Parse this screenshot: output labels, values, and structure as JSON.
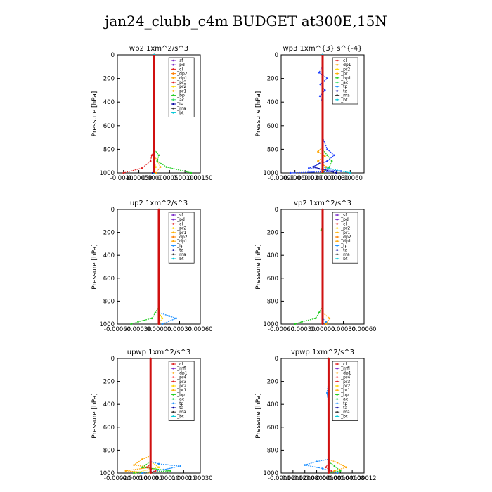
{
  "page": {
    "title": "jan24_clubb_c4m  BUDGET at300E,15N"
  },
  "chart_data": [
    {
      "type": "line",
      "title": "wp2   1xm^2/s^3",
      "ylabel": "Pressure [hPa]",
      "xlim": [
        -0.0012,
        0.0015
      ],
      "xticks": [
        -0.001,
        -0.0005,
        0.0,
        0.0005,
        0.001,
        0.0015
      ],
      "xtick_labels": [
        "-0.00100",
        "-0.00050",
        "0.00000",
        "0.00050",
        "0.00100",
        "0.00150"
      ],
      "ylim": [
        1000,
        0
      ],
      "yticks": [
        0,
        200,
        400,
        600,
        800,
        1000
      ],
      "legend": [
        "_sf",
        "_pd",
        "_cl",
        "_dp2",
        "_dp1",
        "_pr3",
        "_pr2",
        "_pr1",
        "_bp",
        "_ac",
        "_ta",
        "_ma",
        "_bt"
      ],
      "series": [
        {
          "name": "_sf",
          "color": "#7a28c8",
          "points": [
            [
              0,
              0
            ],
            [
              0,
              800
            ],
            [
              0,
              1000
            ]
          ]
        },
        {
          "name": "_cl",
          "color": "#e02020",
          "points": [
            [
              0,
              0
            ],
            [
              0,
              820
            ],
            [
              -8e-05,
              850
            ],
            [
              -0.00012,
              900
            ],
            [
              -0.0004,
              960
            ],
            [
              -0.001,
              1000
            ]
          ]
        },
        {
          "name": "_dp1",
          "color": "#ffa500",
          "points": [
            [
              0,
              0
            ],
            [
              0,
              850
            ],
            [
              0.0001,
              900
            ],
            [
              0.0002,
              950
            ],
            [
              5e-05,
              1000
            ]
          ]
        },
        {
          "name": "_pr2",
          "color": "#ffd700",
          "points": [
            [
              0,
              0
            ],
            [
              0,
              900
            ],
            [
              5e-05,
              950
            ],
            [
              0,
              1000
            ]
          ]
        },
        {
          "name": "_pr1",
          "color": "#22cc22",
          "points": [
            [
              0,
              0
            ],
            [
              0,
              800
            ],
            [
              0.00015,
              850
            ],
            [
              0.0001,
              900
            ],
            [
              0.0004,
              950
            ],
            [
              0.0012,
              1000
            ]
          ]
        },
        {
          "name": "_bp",
          "color": "#1e90ff",
          "points": [
            [
              0,
              0
            ],
            [
              0,
              1000
            ]
          ]
        },
        {
          "name": "_ta",
          "color": "#0000a0",
          "points": [
            [
              0,
              0
            ],
            [
              0,
              950
            ],
            [
              -5e-05,
              1000
            ]
          ]
        },
        {
          "name": "_bt",
          "color": "#00c8d8",
          "points": [
            [
              0,
              0
            ],
            [
              0,
              1000
            ]
          ]
        }
      ]
    },
    {
      "type": "line",
      "title": "wp3   1xm^{3} s^{-4}",
      "ylabel": "Pressure [hPa]",
      "xlim": [
        -0.0009,
        0.0009
      ],
      "xticks": [
        -0.0009,
        -0.0006,
        -0.0003,
        0.0,
        0.0003,
        0.0006
      ],
      "xtick_labels": [
        "-0.00090",
        "-0.00060",
        "-0.00030",
        "0.00000",
        "0.00030",
        "0.00060"
      ],
      "ylim": [
        1000,
        0
      ],
      "yticks": [
        0,
        200,
        400,
        600,
        800,
        1000
      ],
      "legend": [
        "_cl",
        "_dp1",
        "_pr2",
        "_pr1",
        "_bp1",
        "_ac",
        "_tp",
        "_ta",
        "_ma",
        "_bt"
      ],
      "series": [
        {
          "name": "_cl",
          "color": "#e02020",
          "points": [
            [
              0,
              0
            ],
            [
              0,
              1000
            ]
          ]
        },
        {
          "name": "_pr1",
          "color": "#ffa500",
          "points": [
            [
              0,
              0
            ],
            [
              0,
              780
            ],
            [
              -0.0001,
              820
            ],
            [
              5e-05,
              860
            ],
            [
              -0.0001,
              900
            ],
            [
              8e-05,
              950
            ],
            [
              0,
              1000
            ]
          ]
        },
        {
          "name": "_bp1",
          "color": "#22cc22",
          "points": [
            [
              0,
              0
            ],
            [
              0,
              800
            ],
            [
              0.0001,
              850
            ],
            [
              0.0002,
              900
            ],
            [
              0.00015,
              950
            ],
            [
              0,
              1000
            ]
          ]
        },
        {
          "name": "_tp",
          "color": "#1e40ff",
          "points": [
            [
              0,
              0
            ],
            [
              0,
              100
            ],
            [
              -8e-05,
              150
            ],
            [
              0.0001,
              200
            ],
            [
              -5e-05,
              250
            ],
            [
              5e-05,
              300
            ],
            [
              -6e-05,
              350
            ],
            [
              0,
              400
            ],
            [
              0,
              700
            ],
            [
              0.0001,
              800
            ],
            [
              0.00025,
              850
            ],
            [
              0.0001,
              900
            ],
            [
              -0.0003,
              960
            ],
            [
              0.0004,
              985
            ],
            [
              -0.0007,
              1000
            ]
          ]
        },
        {
          "name": "_ta",
          "color": "#0000a0",
          "points": [
            [
              0,
              0
            ],
            [
              0,
              900
            ],
            [
              -0.0002,
              950
            ],
            [
              0.0003,
              1000
            ]
          ]
        },
        {
          "name": "_bt",
          "color": "#00c8d8",
          "points": [
            [
              0,
              0
            ],
            [
              0,
              950
            ],
            [
              0.0006,
              1000
            ]
          ]
        }
      ]
    },
    {
      "type": "line",
      "title": "up2   1xm^2/s^3",
      "ylabel": "Pressure [hPa]",
      "xlim": [
        -0.0006,
        0.0006
      ],
      "xticks": [
        -0.0006,
        -0.0003,
        0.0,
        0.0003,
        0.0006
      ],
      "xtick_labels": [
        "-0.00060",
        "-0.00030",
        "0.00000",
        "0.00030",
        "0.00060"
      ],
      "ylim": [
        1000,
        0
      ],
      "yticks": [
        0,
        200,
        400,
        600,
        800,
        1000
      ],
      "legend": [
        "_sf",
        "_pd",
        "_cl",
        "_pr2",
        "_pr1",
        "_dp2",
        "_dp1",
        "_tp",
        "_ta",
        "_ma",
        "_bt"
      ],
      "series": [
        {
          "name": "_pr1",
          "color": "#22cc22",
          "points": [
            [
              0,
              0
            ],
            [
              0,
              850
            ],
            [
              -5e-05,
              900
            ],
            [
              -0.0001,
              950
            ],
            [
              -0.0003,
              980
            ],
            [
              -0.0004,
              1000
            ]
          ]
        },
        {
          "name": "_pr2",
          "color": "#ffd700",
          "points": [
            [
              0,
              0
            ],
            [
              0,
              900
            ],
            [
              5e-05,
              950
            ],
            [
              0,
              1000
            ]
          ]
        },
        {
          "name": "_tp",
          "color": "#1e90ff",
          "points": [
            [
              0,
              0
            ],
            [
              0,
              900
            ],
            [
              0.00015,
              930
            ],
            [
              0.00025,
              950
            ],
            [
              5e-05,
              1000
            ]
          ]
        },
        {
          "name": "_cl",
          "color": "#e02020",
          "points": [
            [
              0,
              0
            ],
            [
              0,
              1000
            ]
          ]
        }
      ]
    },
    {
      "type": "line",
      "title": "vp2   1xm^2/s^3",
      "ylabel": "Pressure [hPa]",
      "xlim": [
        -0.0006,
        0.0006
      ],
      "xticks": [
        -0.0006,
        -0.0003,
        0.0,
        0.0003,
        0.0006
      ],
      "xtick_labels": [
        "-0.00060",
        "-0.00030",
        "0.00000",
        "0.00030",
        "0.00060"
      ],
      "ylim": [
        1000,
        0
      ],
      "yticks": [
        0,
        200,
        400,
        600,
        800,
        1000
      ],
      "legend": [
        "_sf",
        "_pd",
        "_cl",
        "_pr2",
        "_pr1",
        "_dp2",
        "_dp1",
        "_tp",
        "_ta",
        "_ma",
        "_bt"
      ],
      "series": [
        {
          "name": "_pr1",
          "color": "#22cc22",
          "points": [
            [
              0,
              0
            ],
            [
              0,
              150
            ],
            [
              -2e-05,
              180
            ],
            [
              0,
              200
            ],
            [
              0,
              850
            ],
            [
              -5e-05,
              900
            ],
            [
              -0.0001,
              950
            ],
            [
              -0.0003,
              980
            ],
            [
              -0.0004,
              1000
            ]
          ]
        },
        {
          "name": "_dp1",
          "color": "#ffa500",
          "points": [
            [
              0,
              0
            ],
            [
              0,
              900
            ],
            [
              0.0001,
              950
            ],
            [
              5e-05,
              1000
            ]
          ]
        },
        {
          "name": "_tp",
          "color": "#1e90ff",
          "points": [
            [
              0,
              0
            ],
            [
              0,
              950
            ],
            [
              5e-05,
              980
            ],
            [
              0,
              1000
            ]
          ]
        },
        {
          "name": "_cl",
          "color": "#e02020",
          "points": [
            [
              0,
              0
            ],
            [
              0,
              1000
            ]
          ]
        }
      ]
    },
    {
      "type": "line",
      "title": "upwp   1xm^2/s^3",
      "ylabel": "Pressure [hPa]",
      "xlim": [
        -0.0002,
        0.0003
      ],
      "xticks": [
        -0.0002,
        -0.0001,
        0.0,
        0.0001,
        0.0002,
        0.0003
      ],
      "xtick_labels": [
        "-0.00020",
        "-0.00010",
        "0.00000",
        "0.00010",
        "0.00020",
        "0.00030"
      ],
      "ylim": [
        1000,
        0
      ],
      "yticks": [
        0,
        200,
        400,
        600,
        800,
        1000
      ],
      "legend": [
        "_cl",
        "_mfl",
        "_dp1",
        "_pr4",
        "_pr3",
        "_pr2",
        "_pr1",
        "_bp",
        "_ac",
        "_tp",
        "_ta",
        "_ma",
        "_bt"
      ],
      "series": [
        {
          "name": "_cl",
          "color": "#7a28c8",
          "points": [
            [
              0,
              0
            ],
            [
              0,
              1000
            ]
          ]
        },
        {
          "name": "_pr1",
          "color": "#ffa500",
          "points": [
            [
              0,
              0
            ],
            [
              0,
              850
            ],
            [
              -5e-05,
              880
            ],
            [
              -0.0001,
              930
            ],
            [
              0,
              950
            ],
            [
              -0.00015,
              980
            ],
            [
              0,
              1000
            ]
          ]
        },
        {
          "name": "_pr2",
          "color": "#ffd700",
          "points": [
            [
              0,
              0
            ],
            [
              0,
              900
            ],
            [
              5e-05,
              950
            ],
            [
              -0.0001,
              1000
            ]
          ]
        },
        {
          "name": "_bp",
          "color": "#22cc22",
          "points": [
            [
              0,
              0
            ],
            [
              0,
              900
            ],
            [
              -5e-05,
              950
            ],
            [
              0.00012,
              980
            ],
            [
              -0.0001,
              1000
            ]
          ]
        },
        {
          "name": "_tp",
          "color": "#1e90ff",
          "points": [
            [
              0,
              0
            ],
            [
              0,
              900
            ],
            [
              5e-05,
              920
            ],
            [
              0.00018,
              940
            ],
            [
              8e-05,
              970
            ],
            [
              -5e-05,
              1000
            ]
          ]
        },
        {
          "name": "_pr3",
          "color": "#e02020",
          "points": [
            [
              0,
              0
            ],
            [
              0,
              920
            ],
            [
              -2e-05,
              950
            ],
            [
              3e-05,
              980
            ],
            [
              0,
              1000
            ]
          ]
        }
      ]
    },
    {
      "type": "line",
      "title": "vpwp   1xm^2/s^3",
      "ylabel": "Pressure [hPa]",
      "xlim": [
        -0.00016,
        0.00012
      ],
      "xticks": [
        -0.00016,
        -0.00012,
        -8e-05,
        -4e-05,
        0.0,
        4e-05,
        8e-05,
        0.00012
      ],
      "xtick_labels": [
        "-0.00016",
        "-0.00012",
        "-0.00008",
        "-0.00004",
        "0.00000",
        "0.00004",
        "0.00008",
        "0.00012"
      ],
      "ylim": [
        1000,
        0
      ],
      "yticks": [
        0,
        200,
        400,
        600,
        800,
        1000
      ],
      "legend": [
        "_cl",
        "_mfl",
        "_dp1",
        "_pr4",
        "_pr3",
        "_pr2",
        "_pr1",
        "_bp",
        "_ac",
        "_tp",
        "_ta",
        "_ma",
        "_bt"
      ],
      "series": [
        {
          "name": "_cl",
          "color": "#7a28c8",
          "points": [
            [
              0,
              0
            ],
            [
              0,
              1000
            ]
          ]
        },
        {
          "name": "_tp",
          "color": "#1e90ff",
          "points": [
            [
              0,
              0
            ],
            [
              0,
              200
            ],
            [
              -5e-06,
              300
            ],
            [
              0,
              400
            ],
            [
              0,
              880
            ],
            [
              -4e-05,
              900
            ],
            [
              -8e-05,
              930
            ],
            [
              -2e-05,
              960
            ],
            [
              3e-05,
              1000
            ]
          ]
        },
        {
          "name": "_pr1",
          "color": "#ffa500",
          "points": [
            [
              0,
              0
            ],
            [
              0,
              880
            ],
            [
              3e-05,
              910
            ],
            [
              6e-05,
              950
            ],
            [
              2e-05,
              980
            ],
            [
              0,
              1000
            ]
          ]
        },
        {
          "name": "_bp",
          "color": "#22cc22",
          "points": [
            [
              0,
              0
            ],
            [
              0,
              900
            ],
            [
              2e-05,
              940
            ],
            [
              4e-05,
              980
            ],
            [
              0,
              1000
            ]
          ]
        },
        {
          "name": "_pr3",
          "color": "#e02020",
          "points": [
            [
              0,
              0
            ],
            [
              0,
              920
            ],
            [
              -1e-05,
              950
            ],
            [
              1e-05,
              980
            ],
            [
              0,
              1000
            ]
          ]
        }
      ]
    }
  ]
}
